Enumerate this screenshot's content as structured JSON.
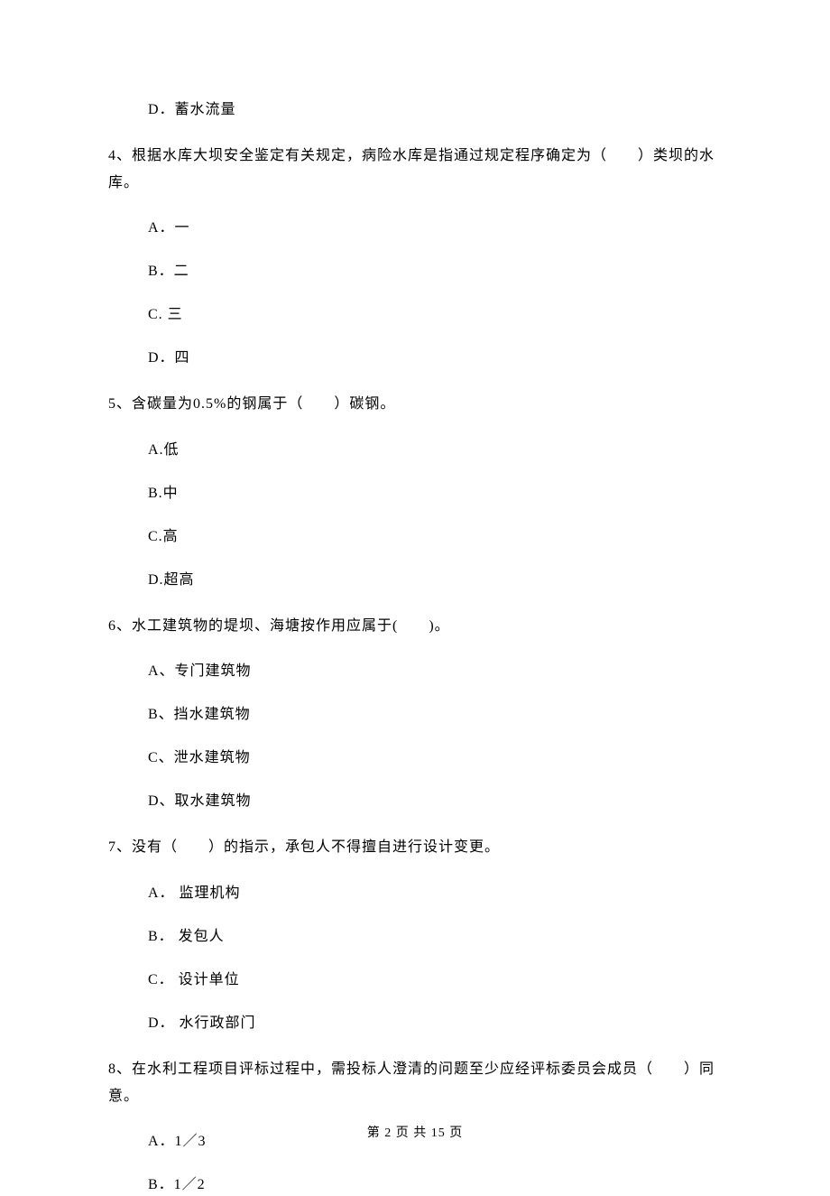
{
  "q3": {
    "optD": "D．蓄水流量"
  },
  "q4": {
    "text": "4、根据水库大坝安全鉴定有关规定，病险水库是指通过规定程序确定为（　　）类坝的水库。",
    "optA": "A．一",
    "optB": "B．二",
    "optC": "C. 三",
    "optD": "D．四"
  },
  "q5": {
    "text": "5、含碳量为0.5%的钢属于（　　）碳钢。",
    "optA": "A.低",
    "optB": "B.中",
    "optC": "C.高",
    "optD": "D.超高"
  },
  "q6": {
    "text": "6、水工建筑物的堤坝、海塘按作用应属于(　　)。",
    "optA": "A、专门建筑物",
    "optB": "B、挡水建筑物",
    "optC": "C、泄水建筑物",
    "optD": "D、取水建筑物"
  },
  "q7": {
    "text": "7、没有（　　）的指示，承包人不得擅自进行设计变更。",
    "optA": "A． 监理机构",
    "optB": "B． 发包人",
    "optC": "C． 设计单位",
    "optD": "D． 水行政部门"
  },
  "q8": {
    "text": "8、在水利工程项目评标过程中，需投标人澄清的问题至少应经评标委员会成员（　　）同意。",
    "optA": "A．1／3",
    "optB": "B．1／2"
  },
  "footer": "第 2 页 共 15 页"
}
